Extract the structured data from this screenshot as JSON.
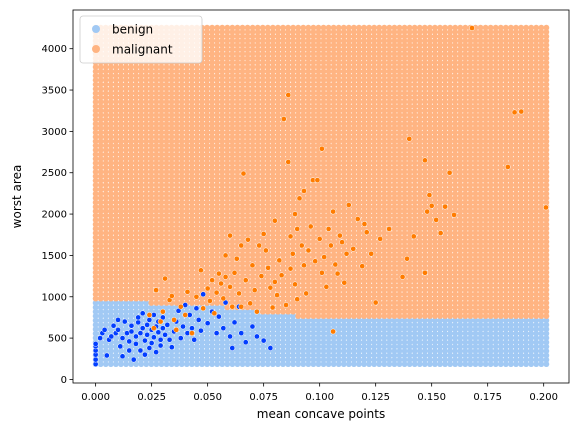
{
  "chart_data": {
    "type": "scatter",
    "title": "",
    "xlabel": "mean concave points",
    "ylabel": "worst area",
    "xlim": [
      -0.0101,
      0.2113
    ],
    "ylim": [
      -43,
      4468
    ],
    "xticks": [
      0.0,
      0.025,
      0.05,
      0.075,
      0.1,
      0.125,
      0.15,
      0.175,
      0.2
    ],
    "xtick_labels": [
      "0.000",
      "0.025",
      "0.050",
      "0.075",
      "0.100",
      "0.125",
      "0.150",
      "0.175",
      "0.200"
    ],
    "yticks": [
      0,
      500,
      1000,
      1500,
      2000,
      2500,
      3000,
      3500,
      4000
    ],
    "ytick_labels": [
      "0",
      "500",
      "1000",
      "1500",
      "2000",
      "2500",
      "3000",
      "3500",
      "4000"
    ],
    "grid": false,
    "legend": {
      "placement": "top-left",
      "entries": [
        {
          "label": "benign",
          "color": "#a1c9f4"
        },
        {
          "label": "malignant",
          "color": "#ffb482"
        }
      ]
    },
    "decision_background": {
      "x_range": [
        0.0,
        0.2012
      ],
      "y_range": [
        185,
        4254
      ],
      "boundary": [
        [
          0.0,
          930
        ],
        [
          0.045,
          920
        ],
        [
          0.09,
          760
        ],
        [
          0.2012,
          750
        ]
      ],
      "below_color": "#a1c9f4",
      "above_color": "#ffb482"
    },
    "series": [
      {
        "name": "benign",
        "color": "#023eff",
        "points": [
          [
            0.0,
            185
          ],
          [
            0.0,
            240
          ],
          [
            0.0,
            300
          ],
          [
            0.0,
            350
          ],
          [
            0.0,
            400
          ],
          [
            0.0,
            430
          ],
          [
            0.002,
            500
          ],
          [
            0.003,
            560
          ],
          [
            0.004,
            600
          ],
          [
            0.005,
            290
          ],
          [
            0.006,
            480
          ],
          [
            0.007,
            520
          ],
          [
            0.008,
            650
          ],
          [
            0.009,
            560
          ],
          [
            0.01,
            720
          ],
          [
            0.01,
            600
          ],
          [
            0.011,
            400
          ],
          [
            0.012,
            280
          ],
          [
            0.012,
            500
          ],
          [
            0.013,
            700
          ],
          [
            0.014,
            560
          ],
          [
            0.015,
            350
          ],
          [
            0.015,
            460
          ],
          [
            0.016,
            650
          ],
          [
            0.016,
            580
          ],
          [
            0.017,
            240
          ],
          [
            0.018,
            520
          ],
          [
            0.018,
            430
          ],
          [
            0.019,
            690
          ],
          [
            0.019,
            750
          ],
          [
            0.02,
            560
          ],
          [
            0.02,
            350
          ],
          [
            0.021,
            620
          ],
          [
            0.021,
            800
          ],
          [
            0.022,
            300
          ],
          [
            0.022,
            470
          ],
          [
            0.023,
            540
          ],
          [
            0.023,
            660
          ],
          [
            0.024,
            380
          ],
          [
            0.024,
            720
          ],
          [
            0.025,
            600
          ],
          [
            0.025,
            440
          ],
          [
            0.026,
            510
          ],
          [
            0.026,
            780
          ],
          [
            0.027,
            330
          ],
          [
            0.027,
            640
          ],
          [
            0.028,
            570
          ],
          [
            0.028,
            700
          ],
          [
            0.029,
            480
          ],
          [
            0.029,
            410
          ],
          [
            0.03,
            620
          ],
          [
            0.03,
            750
          ],
          [
            0.031,
            540
          ],
          [
            0.032,
            660
          ],
          [
            0.033,
            480
          ],
          [
            0.034,
            390
          ],
          [
            0.035,
            580
          ],
          [
            0.036,
            700
          ],
          [
            0.037,
            830
          ],
          [
            0.038,
            500
          ],
          [
            0.039,
            640
          ],
          [
            0.04,
            900
          ],
          [
            0.041,
            560
          ],
          [
            0.042,
            780
          ],
          [
            0.043,
            620
          ],
          [
            0.044,
            480
          ],
          [
            0.045,
            860
          ],
          [
            0.046,
            720
          ],
          [
            0.047,
            590
          ],
          [
            0.048,
            1030
          ],
          [
            0.05,
            680
          ],
          [
            0.052,
            820
          ],
          [
            0.054,
            560
          ],
          [
            0.055,
            760
          ],
          [
            0.057,
            620
          ],
          [
            0.058,
            930
          ],
          [
            0.06,
            520
          ],
          [
            0.061,
            380
          ],
          [
            0.062,
            690
          ],
          [
            0.064,
            880
          ],
          [
            0.065,
            560
          ],
          [
            0.067,
            450
          ],
          [
            0.07,
            640
          ],
          [
            0.072,
            520
          ],
          [
            0.075,
            470
          ],
          [
            0.078,
            380
          ]
        ]
      },
      {
        "name": "malignant",
        "color": "#ff7c00",
        "points": [
          [
            0.024,
            780
          ],
          [
            0.026,
            620
          ],
          [
            0.027,
            1080
          ],
          [
            0.029,
            700
          ],
          [
            0.03,
            820
          ],
          [
            0.031,
            1220
          ],
          [
            0.033,
            960
          ],
          [
            0.034,
            1010
          ],
          [
            0.035,
            720
          ],
          [
            0.036,
            600
          ],
          [
            0.038,
            880
          ],
          [
            0.04,
            780
          ],
          [
            0.041,
            1060
          ],
          [
            0.043,
            560
          ],
          [
            0.045,
            1000
          ],
          [
            0.047,
            1320
          ],
          [
            0.048,
            860
          ],
          [
            0.05,
            1100
          ],
          [
            0.051,
            950
          ],
          [
            0.052,
            1200
          ],
          [
            0.053,
            800
          ],
          [
            0.054,
            1050
          ],
          [
            0.055,
            1280
          ],
          [
            0.056,
            1160
          ],
          [
            0.057,
            980
          ],
          [
            0.058,
            1500
          ],
          [
            0.058,
            1240
          ],
          [
            0.06,
            1740
          ],
          [
            0.06,
            1120
          ],
          [
            0.061,
            880
          ],
          [
            0.062,
            1290
          ],
          [
            0.063,
            1460
          ],
          [
            0.064,
            1040
          ],
          [
            0.065,
            1620
          ],
          [
            0.065,
            880
          ],
          [
            0.066,
            2490
          ],
          [
            0.067,
            1200
          ],
          [
            0.068,
            1690
          ],
          [
            0.069,
            920
          ],
          [
            0.07,
            1380
          ],
          [
            0.071,
            1080
          ],
          [
            0.072,
            820
          ],
          [
            0.073,
            1620
          ],
          [
            0.074,
            1250
          ],
          [
            0.075,
            1760
          ],
          [
            0.076,
            1560
          ],
          [
            0.077,
            1350
          ],
          [
            0.078,
            1110
          ],
          [
            0.079,
            870
          ],
          [
            0.08,
            1180
          ],
          [
            0.08,
            1920
          ],
          [
            0.081,
            1020
          ],
          [
            0.082,
            1440
          ],
          [
            0.083,
            1260
          ],
          [
            0.084,
            3150
          ],
          [
            0.085,
            900
          ],
          [
            0.086,
            3440
          ],
          [
            0.086,
            2630
          ],
          [
            0.087,
            1730
          ],
          [
            0.087,
            1340
          ],
          [
            0.088,
            1520
          ],
          [
            0.089,
            2000
          ],
          [
            0.089,
            1150
          ],
          [
            0.09,
            1820
          ],
          [
            0.09,
            970
          ],
          [
            0.091,
            2190
          ],
          [
            0.092,
            1620
          ],
          [
            0.093,
            1380
          ],
          [
            0.093,
            2280
          ],
          [
            0.094,
            1040
          ],
          [
            0.095,
            1560
          ],
          [
            0.096,
            1850
          ],
          [
            0.097,
            2410
          ],
          [
            0.098,
            1430
          ],
          [
            0.099,
            2410
          ],
          [
            0.1,
            1700
          ],
          [
            0.101,
            1290
          ],
          [
            0.101,
            2790
          ],
          [
            0.102,
            1480
          ],
          [
            0.103,
            1120
          ],
          [
            0.104,
            1820
          ],
          [
            0.105,
            1620
          ],
          [
            0.106,
            2030
          ],
          [
            0.107,
            1390
          ],
          [
            0.108,
            1280
          ],
          [
            0.109,
            1740
          ],
          [
            0.11,
            1660
          ],
          [
            0.111,
            1170
          ],
          [
            0.112,
            1520
          ],
          [
            0.113,
            2110
          ],
          [
            0.115,
            1580
          ],
          [
            0.117,
            1940
          ],
          [
            0.119,
            1370
          ],
          [
            0.12,
            1880
          ],
          [
            0.121,
            1780
          ],
          [
            0.123,
            1520
          ],
          [
            0.125,
            930
          ],
          [
            0.127,
            1700
          ],
          [
            0.131,
            1820
          ],
          [
            0.137,
            1240
          ],
          [
            0.139,
            1460
          ],
          [
            0.14,
            2910
          ],
          [
            0.142,
            1730
          ],
          [
            0.147,
            1290
          ],
          [
            0.147,
            2650
          ],
          [
            0.148,
            2030
          ],
          [
            0.149,
            2230
          ],
          [
            0.15,
            2100
          ],
          [
            0.152,
            1930
          ],
          [
            0.154,
            1770
          ],
          [
            0.156,
            2090
          ],
          [
            0.158,
            2500
          ],
          [
            0.16,
            1990
          ],
          [
            0.168,
            4250
          ],
          [
            0.184,
            2570
          ],
          [
            0.187,
            3230
          ],
          [
            0.19,
            3240
          ],
          [
            0.201,
            2080
          ],
          [
            0.106,
            580
          ]
        ]
      }
    ]
  }
}
